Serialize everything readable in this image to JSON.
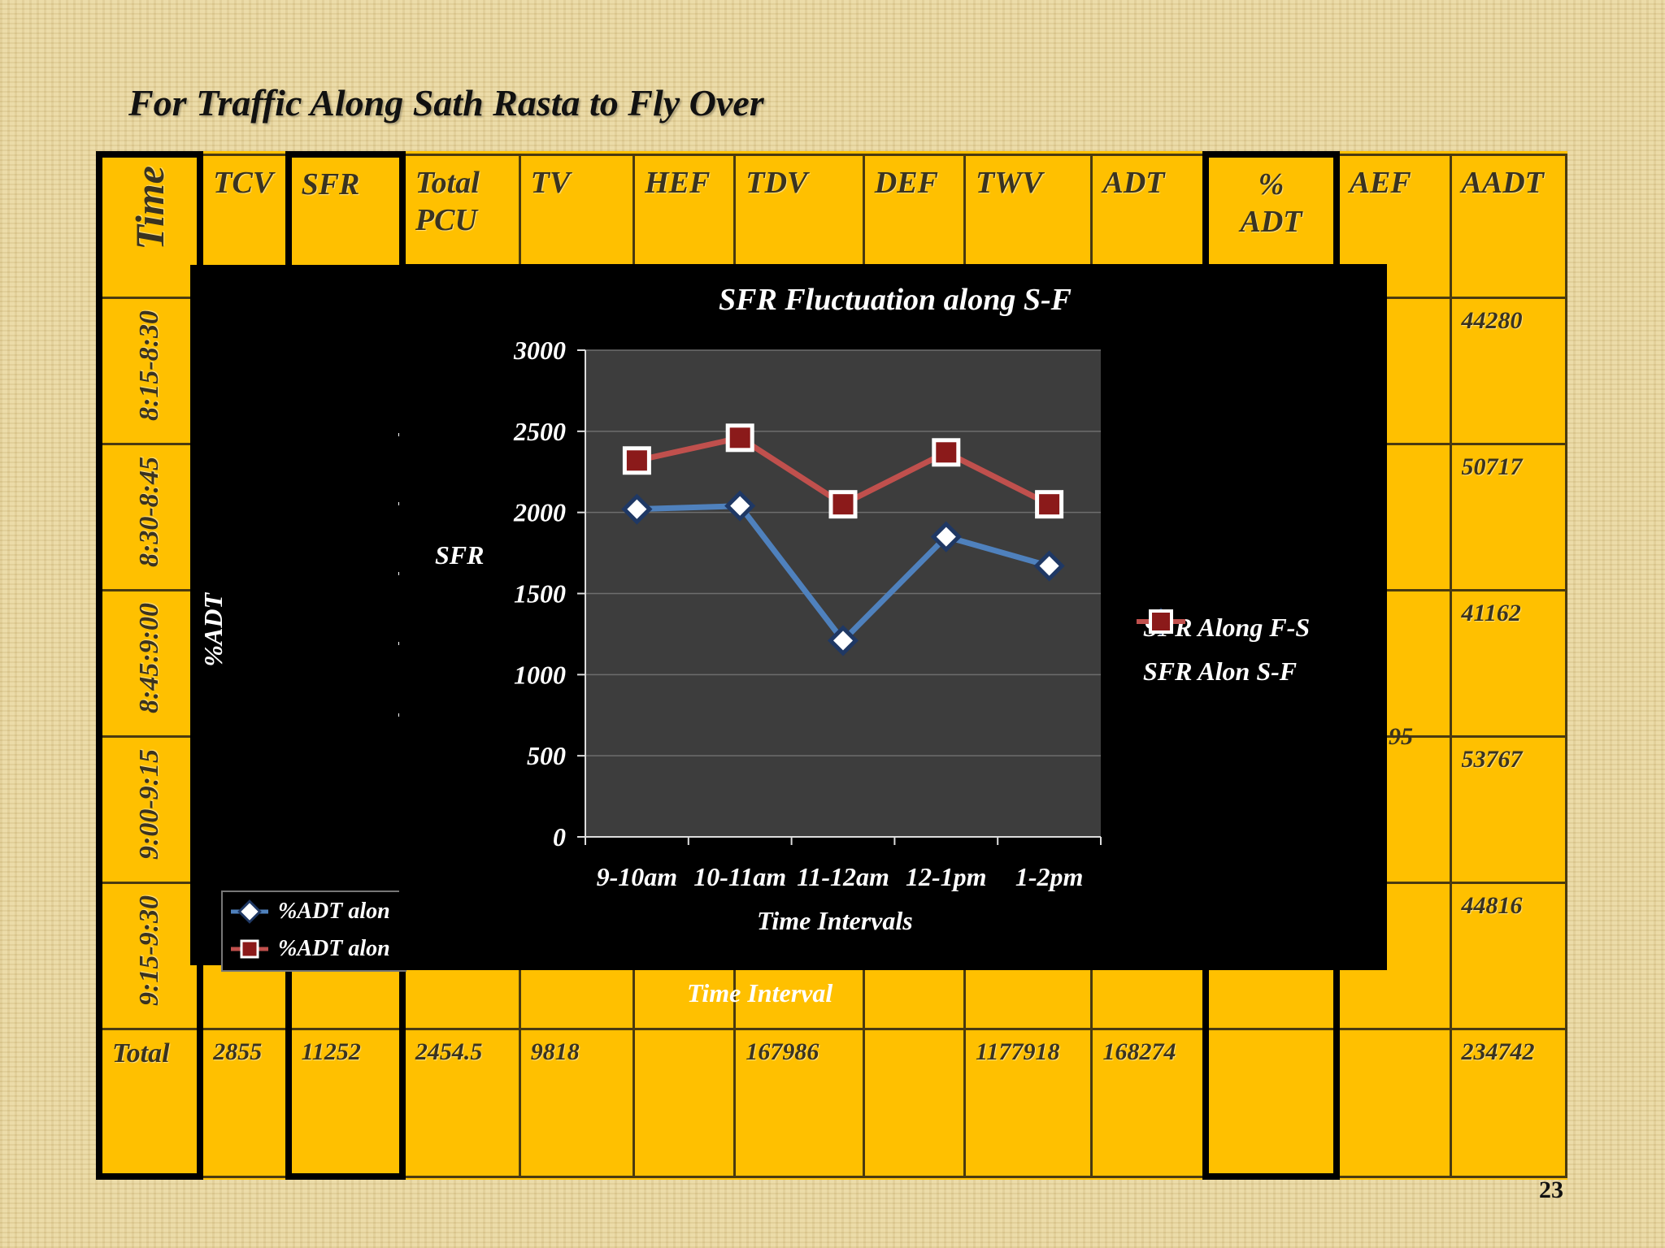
{
  "slide": {
    "title": "For Traffic Along Sath Rasta to Fly Over",
    "number": "23"
  },
  "table": {
    "headers": {
      "time": "Time",
      "tcv": "TCV",
      "sfr": "SFR",
      "total_pcu_1": "Total",
      "total_pcu_2": "PCU",
      "tv": "TV",
      "hef": "HEF",
      "tdv": "TDV",
      "def": "DEF",
      "twv": "TWV",
      "adt": "ADT",
      "pct_adt_1": "%",
      "pct_adt_2": "ADT",
      "aef": "AEF",
      "aadt": "AADT"
    },
    "time_rows": [
      "8:15-8:30",
      "8:30-8:45",
      "8:45:9:00",
      "9:00-9:15",
      "9:15-9:30"
    ],
    "aadt_values": [
      "44280",
      "50717",
      "41162",
      "53767",
      "44816"
    ],
    "aef_partial": "95",
    "total_row": {
      "label": "Total",
      "tcv": "2855",
      "sfr": "11252",
      "total_pcu": "2454.5",
      "tv": "9818",
      "hef": "",
      "tdv": "167986",
      "def": "",
      "twv": "1177918",
      "adt": "168274",
      "pct_adt": "",
      "aef": "",
      "aadt": "234742"
    }
  },
  "background_chart": {
    "ylabel": "%ADT",
    "xlabel": "Time Interval",
    "legend": [
      "%ADT alon",
      "%ADT alon"
    ]
  },
  "colors": {
    "table_fill": "#ffc000",
    "series_blue": "#4f81bd",
    "series_red": "#c0504d",
    "plot_area": "#3d3d3d"
  },
  "chart_data": {
    "type": "line",
    "title": "SFR Fluctuation along S-F",
    "xlabel": "Time Intervals",
    "ylabel": "SFR",
    "categories": [
      "9-10am",
      "10-11am",
      "11-12am",
      "12-1pm",
      "1-2pm"
    ],
    "y_ticks": [
      "0",
      "500",
      "1000",
      "1500",
      "2000",
      "2500",
      "3000"
    ],
    "ylim": [
      0,
      3000
    ],
    "grid": true,
    "legend_position": "right",
    "series": [
      {
        "name": "SFR Along F-S",
        "values": [
          2020,
          2040,
          1210,
          1850,
          1670
        ],
        "color": "#4f81bd",
        "marker": "diamond"
      },
      {
        "name": "SFR Alon S-F",
        "values": [
          2320,
          2460,
          2050,
          2370,
          2050
        ],
        "color": "#c0504d",
        "marker": "square"
      }
    ]
  }
}
